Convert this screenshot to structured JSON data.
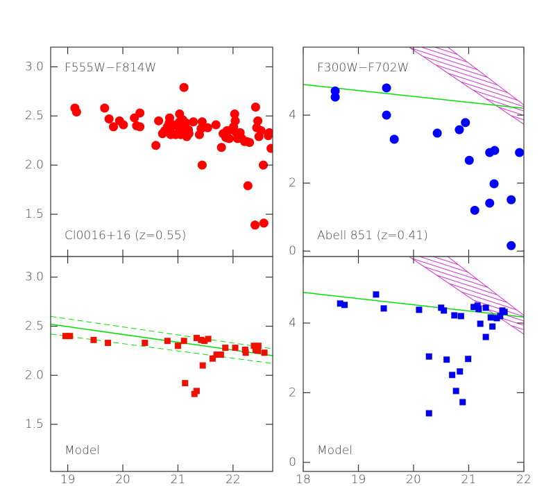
{
  "chart_data": [
    {
      "type": "scatter",
      "marker": "circle",
      "xlim": [
        18.69,
        22.72
      ],
      "ylim": [
        1.07,
        3.2
      ],
      "xticks": [
        19,
        20,
        21,
        22
      ],
      "show_xtick_labels": false,
      "yticks": [
        1.5,
        {
          "value": 2,
          "label": "2.0"
        },
        2.5,
        {
          "value": 3,
          "label": "3.0"
        }
      ],
      "annotations": [
        {
          "text": "F555W−F814W",
          "corner": "top-left"
        },
        {
          "text": "Cl0016+16 (z=0.55)",
          "corner": "bottom-left"
        }
      ],
      "series": [
        {
          "color": "#ff0000",
          "x": [
            19.13,
            19.16,
            19.67,
            19.75,
            19.83,
            19.94,
            20.01,
            20.21,
            20.25,
            20.31,
            20.31,
            20.6,
            20.65,
            20.72,
            20.76,
            20.81,
            20.84,
            20.85,
            20.86,
            20.87,
            20.91,
            20.96,
            21.01,
            21.03,
            21.03,
            21.05,
            21.09,
            21.11,
            21.13,
            21.14,
            21.16,
            21.19,
            21.2,
            21.28,
            21.39,
            21.42,
            21.44,
            21.44,
            21.54,
            21.69,
            21.79,
            21.82,
            21.87,
            21.89,
            21.93,
            21.97,
            22.01,
            22.03,
            22.04,
            22.06,
            22.08,
            22.13,
            22.16,
            22.21,
            22.25,
            22.27,
            22.3,
            22.4,
            22.41,
            22.43,
            22.45,
            22.47,
            22.51,
            22.55,
            22.56,
            22.64,
            22.66,
            22.69
          ],
          "values": [
            2.58,
            2.54,
            2.58,
            2.47,
            2.39,
            2.45,
            2.41,
            2.48,
            2.4,
            2.53,
            2.39,
            2.2,
            2.45,
            2.32,
            2.35,
            2.39,
            2.43,
            2.48,
            2.36,
            2.31,
            2.41,
            2.31,
            2.39,
            2.52,
            2.44,
            2.31,
            2.46,
            2.79,
            2.36,
            2.43,
            2.29,
            2.36,
            2.32,
            2.44,
            2.31,
            2.37,
            2.44,
            2.0,
            2.38,
            2.41,
            2.18,
            2.32,
            2.28,
            2.35,
            2.27,
            2.36,
            2.39,
            2.52,
            2.45,
            2.33,
            2.27,
            2.33,
            2.27,
            2.24,
            2.24,
            1.79,
            2.23,
            1.39,
            2.59,
            2.38,
            2.45,
            2.29,
            2.35,
            2.0,
            1.41,
            2.3,
            2.33,
            2.17
          ]
        }
      ]
    },
    {
      "type": "scatter",
      "marker": "circle",
      "xlim": [
        18,
        22
      ],
      "ylim": [
        -0.16,
        6.0
      ],
      "xticks": [
        18,
        19,
        20,
        21,
        22
      ],
      "show_xtick_labels": false,
      "yticks": [
        0,
        2,
        4
      ],
      "annotations": [
        {
          "text": "F300W−F702W",
          "corner": "top-left"
        },
        {
          "text": "Abell 851 (z=0.41)",
          "corner": "bottom-left"
        }
      ],
      "lines": [
        {
          "x": [
            18,
            22
          ],
          "y": [
            4.9,
            4.2
          ],
          "color": "#00e000",
          "dashed": false
        }
      ],
      "hatch": {
        "x": [
          19.92,
          20.62,
          22,
          22
        ],
        "y": [
          6.0,
          6.0,
          4.3,
          3.73
        ],
        "color": "#d030d0"
      },
      "series": [
        {
          "color": "#0000ff",
          "x": [
            18.58,
            18.58,
            19.51,
            19.51,
            19.65,
            20.43,
            20.83,
            20.94,
            21.01,
            21.11,
            21.38,
            21.47,
            21.38,
            21.46,
            21.77,
            21.77,
            21.92
          ],
          "values": [
            4.71,
            4.53,
            4.8,
            4.0,
            3.29,
            3.47,
            3.57,
            3.78,
            2.67,
            1.2,
            2.9,
            2.96,
            1.41,
            1.98,
            1.51,
            0.16,
            2.9
          ]
        }
      ]
    },
    {
      "type": "scatter",
      "marker": "square",
      "xlim": [
        18.69,
        22.72
      ],
      "ylim": [
        1.02,
        3.21
      ],
      "xticks": [
        19,
        20,
        21,
        22
      ],
      "show_xtick_labels": true,
      "yticks": [
        1.5,
        {
          "value": 2,
          "label": "2.0"
        },
        2.5,
        {
          "value": 3,
          "label": "3.0"
        }
      ],
      "annotations": [
        {
          "text": "Model",
          "corner": "bottom-left"
        }
      ],
      "lines": [
        {
          "x": [
            18.69,
            22.72
          ],
          "y": [
            2.52,
            2.2
          ],
          "color": "#00e000",
          "dashed": false
        },
        {
          "x": [
            18.69,
            22.72
          ],
          "y": [
            2.6,
            2.27
          ],
          "color": "#00e000",
          "dashed": true
        },
        {
          "x": [
            18.69,
            22.72
          ],
          "y": [
            2.42,
            2.12
          ],
          "color": "#00e000",
          "dashed": true
        }
      ],
      "series": [
        {
          "color": "#ee1100",
          "x": [
            18.96,
            19.04,
            19.47,
            19.73,
            20.4,
            20.81,
            21.0,
            21.11,
            21.13,
            21.3,
            21.34,
            21.34,
            21.42,
            21.45,
            21.48,
            21.55,
            21.63,
            21.7,
            21.78,
            21.86,
            22.04,
            22.22,
            22.23,
            22.38,
            22.41,
            22.46,
            22.45,
            22.57
          ],
          "values": [
            2.4,
            2.4,
            2.36,
            2.33,
            2.33,
            2.35,
            2.3,
            2.35,
            1.92,
            1.81,
            1.84,
            2.38,
            2.36,
            2.1,
            2.35,
            2.37,
            2.17,
            2.21,
            2.21,
            2.28,
            2.28,
            2.26,
            2.23,
            2.3,
            2.26,
            2.3,
            2.25,
            2.23
          ]
        }
      ]
    },
    {
      "type": "scatter",
      "marker": "square",
      "xlim": [
        18,
        22
      ],
      "ylim": [
        -0.26,
        5.91
      ],
      "xticks": [
        18,
        19,
        20,
        21,
        22
      ],
      "show_xtick_labels": true,
      "yticks": [
        0,
        2,
        4
      ],
      "annotations": [
        {
          "text": "Model",
          "corner": "bottom-left"
        }
      ],
      "lines": [
        {
          "x": [
            18,
            22
          ],
          "y": [
            4.88,
            4.17
          ],
          "color": "#00e000",
          "dashed": false
        }
      ],
      "hatch": {
        "x": [
          19.92,
          20.62,
          22,
          22
        ],
        "y": [
          5.91,
          5.91,
          4.22,
          3.68
        ],
        "color": "#d030d0"
      },
      "series": [
        {
          "color": "#0000ee",
          "x": [
            18.67,
            18.75,
            19.32,
            19.46,
            20.1,
            20.28,
            20.28,
            20.5,
            20.55,
            20.6,
            20.7,
            20.74,
            20.77,
            20.86,
            20.84,
            20.89,
            20.99,
            21.09,
            21.16,
            21.18,
            21.21,
            21.31,
            21.31,
            21.4,
            21.43,
            21.51,
            21.57,
            21.61,
            21.65
          ],
          "values": [
            4.56,
            4.52,
            4.82,
            4.42,
            4.38,
            3.04,
            1.41,
            4.44,
            4.36,
            2.95,
            2.51,
            4.22,
            2.05,
            4.2,
            2.61,
            1.73,
            2.97,
            4.46,
            4.5,
            4.4,
            3.98,
            4.44,
            3.6,
            4.16,
            3.9,
            4.14,
            4.2,
            4.36,
            4.32
          ]
        }
      ]
    }
  ]
}
